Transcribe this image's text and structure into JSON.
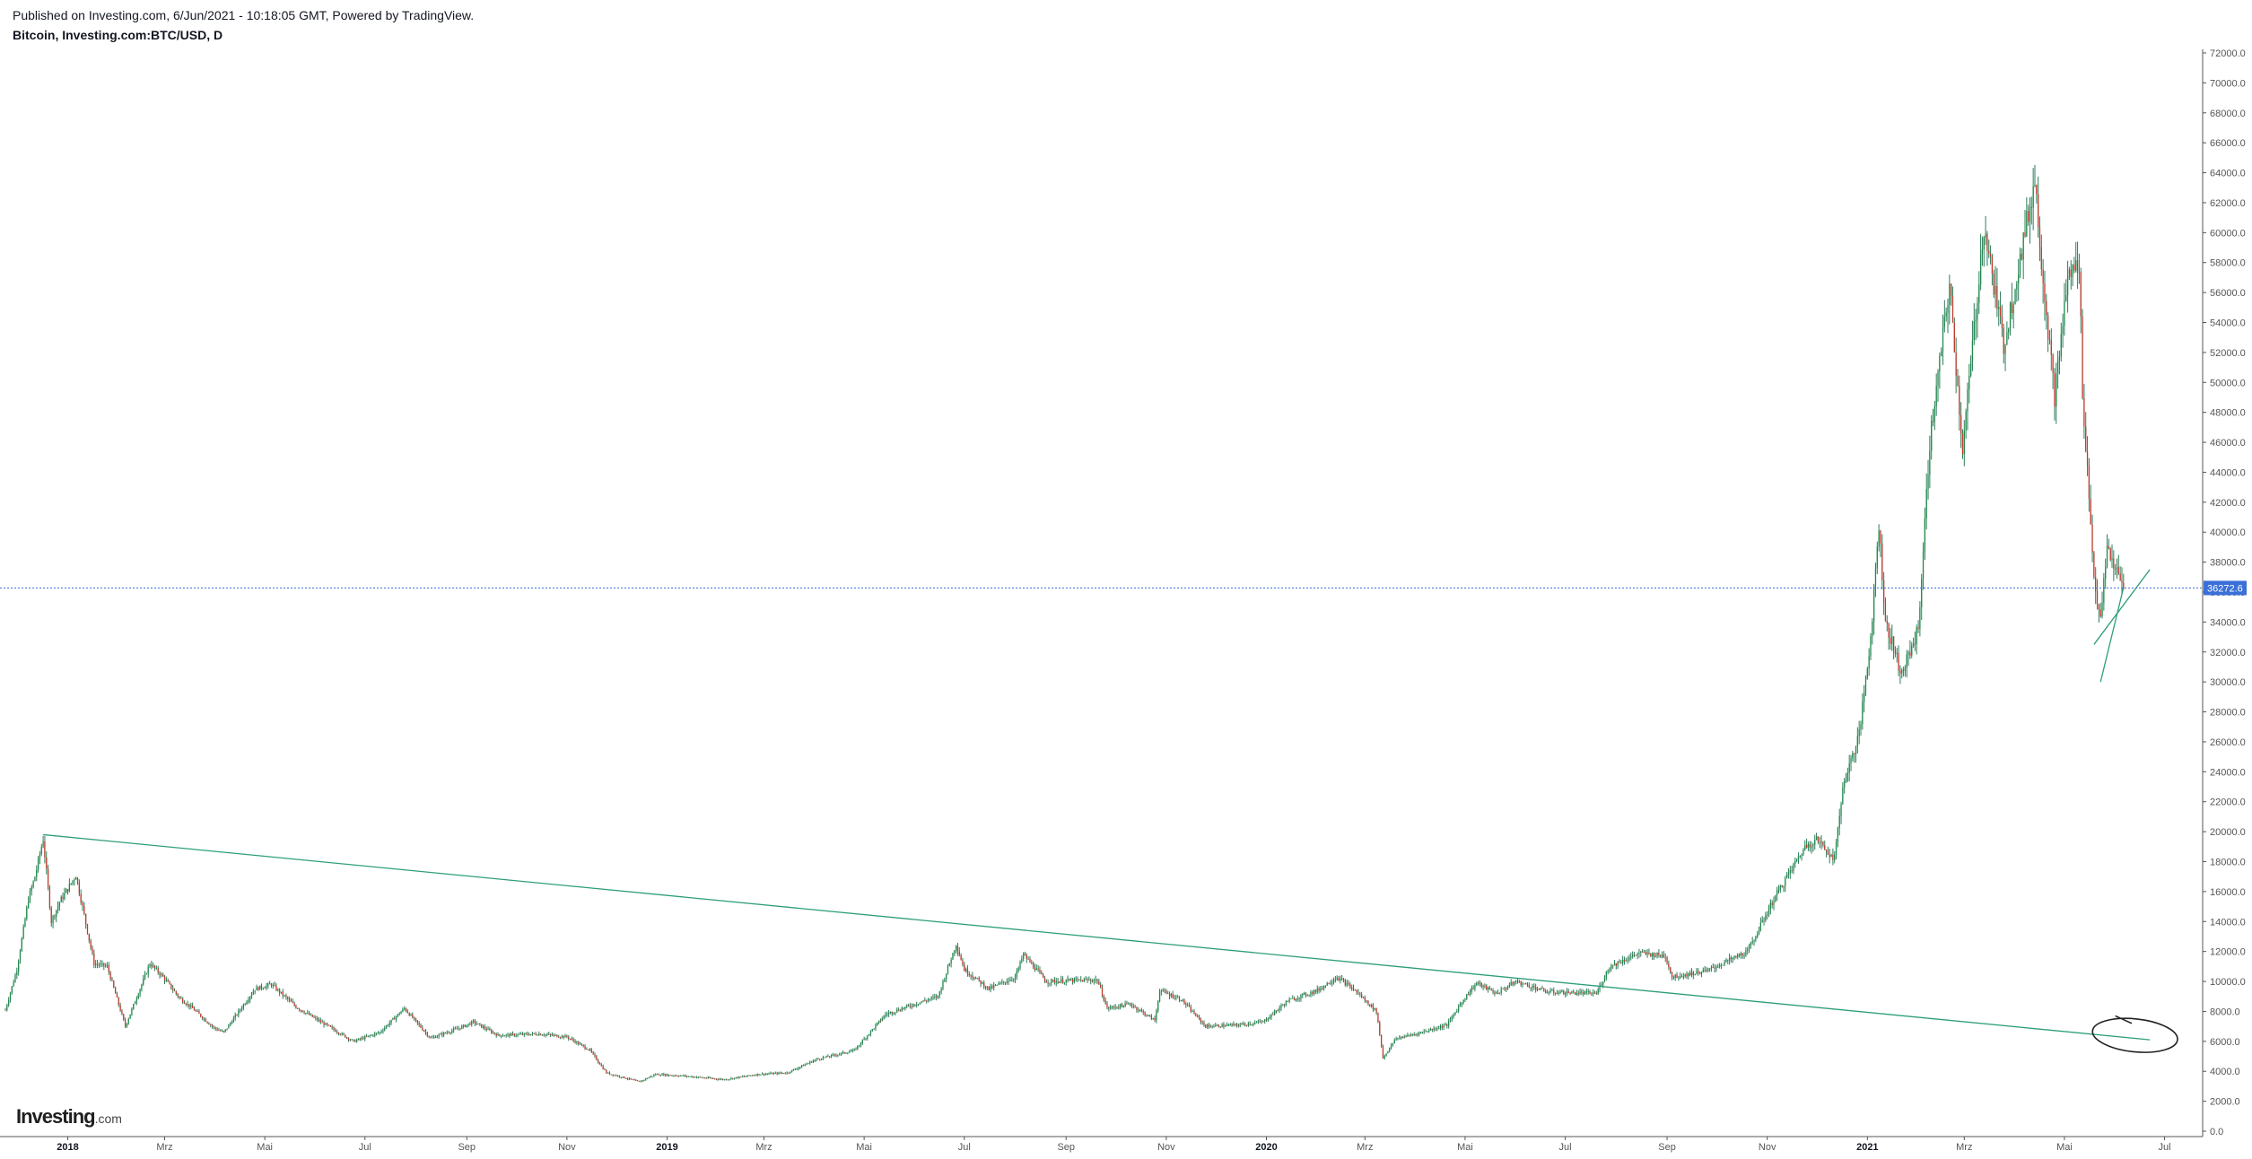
{
  "header": {
    "published": "Published on Investing.com, 6/Jun/2021 - 10:18:05 GMT, Powered by TradingView.",
    "symbol": "Bitcoin, Investing.com:BTC/USD, D"
  },
  "logo": {
    "brand": "Investing",
    "suffix": ".com"
  },
  "colors": {
    "up": "#26a69a",
    "up_body": "#1e8a4a",
    "down": "#c0392b",
    "wick": "#2e7d5b",
    "trendline": "#2e9e7a",
    "price_line": "#3a6fd8",
    "price_label_bg": "#3a6fd8",
    "annotation": "#222222"
  },
  "chart_data": {
    "type": "candlestick",
    "title": "Bitcoin, Investing.com:BTC/USD, D",
    "ylim": [
      0,
      72000
    ],
    "y_ticks": [
      "0.0",
      "2000.0",
      "4000.0",
      "6000.0",
      "8000.0",
      "10000.0",
      "12000.0",
      "14000.0",
      "16000.0",
      "18000.0",
      "20000.0",
      "22000.0",
      "24000.0",
      "26000.0",
      "28000.0",
      "30000.0",
      "32000.0",
      "34000.0",
      "36000.0",
      "38000.0",
      "40000.0",
      "42000.0",
      "44000.0",
      "46000.0",
      "48000.0",
      "50000.0",
      "52000.0",
      "54000.0",
      "56000.0",
      "58000.0",
      "60000.0",
      "62000.0",
      "64000.0",
      "66000.0",
      "68000.0",
      "70000.0",
      "72000.0"
    ],
    "x_range": [
      "2017-11-24",
      "2021-07-22"
    ],
    "x_ticks": [
      {
        "label": "2018",
        "date": "2018-01-01",
        "bold": true
      },
      {
        "label": "Mrz",
        "date": "2018-03-01"
      },
      {
        "label": "Mai",
        "date": "2018-05-01"
      },
      {
        "label": "Jul",
        "date": "2018-07-01"
      },
      {
        "label": "Sep",
        "date": "2018-09-01"
      },
      {
        "label": "Nov",
        "date": "2018-11-01"
      },
      {
        "label": "2019",
        "date": "2019-01-01",
        "bold": true
      },
      {
        "label": "Mrz",
        "date": "2019-03-01"
      },
      {
        "label": "Mai",
        "date": "2019-05-01"
      },
      {
        "label": "Jul",
        "date": "2019-07-01"
      },
      {
        "label": "Sep",
        "date": "2019-09-01"
      },
      {
        "label": "Nov",
        "date": "2019-11-01"
      },
      {
        "label": "2020",
        "date": "2020-01-01",
        "bold": true
      },
      {
        "label": "Mrz",
        "date": "2020-03-01"
      },
      {
        "label": "Mai",
        "date": "2020-05-01"
      },
      {
        "label": "Jul",
        "date": "2020-07-01"
      },
      {
        "label": "Sep",
        "date": "2020-09-01"
      },
      {
        "label": "Nov",
        "date": "2020-11-01"
      },
      {
        "label": "2021",
        "date": "2021-01-01",
        "bold": true
      },
      {
        "label": "Mrz",
        "date": "2021-03-01"
      },
      {
        "label": "Mai",
        "date": "2021-05-01"
      },
      {
        "label": "Jul",
        "date": "2021-07-01"
      }
    ],
    "current_price": 36272.6,
    "current_price_label": "36272.6",
    "price_path": [
      [
        "2017-11-24",
        8100
      ],
      [
        "2017-12-01",
        10800
      ],
      [
        "2017-12-08",
        15500
      ],
      [
        "2017-12-12",
        17000
      ],
      [
        "2017-12-17",
        19500
      ],
      [
        "2017-12-22",
        14000
      ],
      [
        "2017-12-27",
        15300
      ],
      [
        "2018-01-06",
        17100
      ],
      [
        "2018-01-17",
        11200
      ],
      [
        "2018-01-25",
        11000
      ],
      [
        "2018-02-05",
        7000
      ],
      [
        "2018-02-20",
        11200
      ],
      [
        "2018-02-28",
        10300
      ],
      [
        "2018-03-10",
        8900
      ],
      [
        "2018-03-18",
        8200
      ],
      [
        "2018-03-31",
        6900
      ],
      [
        "2018-04-06",
        6600
      ],
      [
        "2018-04-25",
        9500
      ],
      [
        "2018-05-05",
        9800
      ],
      [
        "2018-05-20",
        8300
      ],
      [
        "2018-06-01",
        7500
      ],
      [
        "2018-06-24",
        6000
      ],
      [
        "2018-07-10",
        6600
      ],
      [
        "2018-07-25",
        8200
      ],
      [
        "2018-08-10",
        6200
      ],
      [
        "2018-08-30",
        7000
      ],
      [
        "2018-09-05",
        7300
      ],
      [
        "2018-09-20",
        6400
      ],
      [
        "2018-10-15",
        6500
      ],
      [
        "2018-11-01",
        6300
      ],
      [
        "2018-11-15",
        5400
      ],
      [
        "2018-11-25",
        3900
      ],
      [
        "2018-12-15",
        3300
      ],
      [
        "2018-12-25",
        3800
      ],
      [
        "2019-01-10",
        3700
      ],
      [
        "2019-02-05",
        3450
      ],
      [
        "2019-02-25",
        3800
      ],
      [
        "2019-03-15",
        3900
      ],
      [
        "2019-04-02",
        4800
      ],
      [
        "2019-04-25",
        5400
      ],
      [
        "2019-05-14",
        7800
      ],
      [
        "2019-06-01",
        8500
      ],
      [
        "2019-06-15",
        9000
      ],
      [
        "2019-06-26",
        12500
      ],
      [
        "2019-07-01",
        10800
      ],
      [
        "2019-07-16",
        9500
      ],
      [
        "2019-08-01",
        10300
      ],
      [
        "2019-08-06",
        11800
      ],
      [
        "2019-08-20",
        10000
      ],
      [
        "2019-09-20",
        10100
      ],
      [
        "2019-09-26",
        8200
      ],
      [
        "2019-10-10",
        8500
      ],
      [
        "2019-10-25",
        7400
      ],
      [
        "2019-10-28",
        9400
      ],
      [
        "2019-11-10",
        8800
      ],
      [
        "2019-11-25",
        7000
      ],
      [
        "2019-12-15",
        7100
      ],
      [
        "2019-12-30",
        7300
      ],
      [
        "2020-01-14",
        8700
      ],
      [
        "2020-02-01",
        9400
      ],
      [
        "2020-02-13",
        10300
      ],
      [
        "2020-02-25",
        9300
      ],
      [
        "2020-03-08",
        8000
      ],
      [
        "2020-03-12",
        4900
      ],
      [
        "2020-03-20",
        6200
      ],
      [
        "2020-04-01",
        6500
      ],
      [
        "2020-04-20",
        7100
      ],
      [
        "2020-04-30",
        8800
      ],
      [
        "2020-05-08",
        9900
      ],
      [
        "2020-05-20",
        9200
      ],
      [
        "2020-06-01",
        10000
      ],
      [
        "2020-06-20",
        9300
      ],
      [
        "2020-07-20",
        9200
      ],
      [
        "2020-07-28",
        11000
      ],
      [
        "2020-08-15",
        11900
      ],
      [
        "2020-08-31",
        11700
      ],
      [
        "2020-09-04",
        10300
      ],
      [
        "2020-09-25",
        10700
      ],
      [
        "2020-10-20",
        12000
      ],
      [
        "2020-11-05",
        15500
      ],
      [
        "2020-11-24",
        19000
      ],
      [
        "2020-12-01",
        19500
      ],
      [
        "2020-12-12",
        18200
      ],
      [
        "2020-12-17",
        23000
      ],
      [
        "2020-12-27",
        26500
      ],
      [
        "2021-01-03",
        33000
      ],
      [
        "2021-01-08",
        40500
      ],
      [
        "2021-01-12",
        34000
      ],
      [
        "2021-01-22",
        30500
      ],
      [
        "2021-02-01",
        33500
      ],
      [
        "2021-02-08",
        46000
      ],
      [
        "2021-02-20",
        56500
      ],
      [
        "2021-02-28",
        45500
      ],
      [
        "2021-03-13",
        60500
      ],
      [
        "2021-03-25",
        52500
      ],
      [
        "2021-04-13",
        63500
      ],
      [
        "2021-04-18",
        57000
      ],
      [
        "2021-04-25",
        49000
      ],
      [
        "2021-05-03",
        57000
      ],
      [
        "2021-05-10",
        58000
      ],
      [
        "2021-05-12",
        49500
      ],
      [
        "2021-05-19",
        37000
      ],
      [
        "2021-05-23",
        34000
      ],
      [
        "2021-05-27",
        39000
      ],
      [
        "2021-06-03",
        37000
      ],
      [
        "2021-06-06",
        36272.6
      ]
    ],
    "annotations": [
      {
        "type": "trendline",
        "from": [
          "2017-12-17",
          19800
        ],
        "to": [
          "2021-06-22",
          6100
        ]
      },
      {
        "type": "trendline",
        "from": [
          "2021-05-19",
          32500
        ],
        "to": [
          "2021-06-22",
          37500
        ]
      },
      {
        "type": "trendline",
        "from": [
          "2021-05-23",
          30000
        ],
        "to": [
          "2021-06-06",
          36300
        ]
      },
      {
        "type": "ellipse",
        "center": [
          "2021-06-13",
          6400
        ],
        "rx_days": 26,
        "ry_value": 1100
      },
      {
        "type": "stroke",
        "from": [
          "2021-06-01",
          7700
        ],
        "to": [
          "2021-06-11",
          7200
        ]
      }
    ]
  }
}
